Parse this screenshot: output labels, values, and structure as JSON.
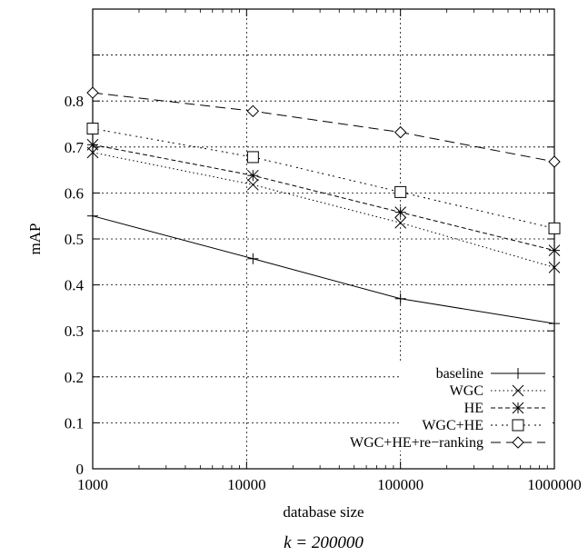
{
  "chart_data": {
    "type": "line",
    "xscale": "log",
    "x": [
      1000,
      10000,
      100000,
      1000000
    ],
    "xlim": [
      1000,
      1000000
    ],
    "ylim": [
      0,
      1
    ],
    "xticks": [
      "1000",
      "10000",
      "100000",
      "1000000"
    ],
    "yticks": [
      "0",
      "0.1",
      "0.2",
      "0.3",
      "0.4",
      "0.5",
      "0.6",
      "0.7",
      "0.8"
    ],
    "xlabel": "database size",
    "ylabel": "mAP",
    "caption": "k = 200000",
    "grid": true,
    "legend_position": "bottom-right",
    "series": [
      {
        "name": "baseline",
        "marker": "plus",
        "dash": "solid",
        "x": [
          1000,
          11000,
          100000,
          1000000
        ],
        "values": [
          0.55,
          0.457,
          0.37,
          0.316
        ]
      },
      {
        "name": "WGC",
        "marker": "cross",
        "dash": "dotted",
        "x": [
          1000,
          11000,
          100000,
          1000000
        ],
        "values": [
          0.688,
          0.618,
          0.535,
          0.438
        ]
      },
      {
        "name": "HE",
        "marker": "asterisk",
        "dash": "dashed",
        "x": [
          1000,
          11000,
          100000,
          1000000
        ],
        "values": [
          0.705,
          0.638,
          0.558,
          0.475
        ]
      },
      {
        "name": "WGC+HE",
        "marker": "square",
        "dash": "dashdot",
        "x": [
          1000,
          11000,
          100000,
          1000000
        ],
        "values": [
          0.74,
          0.678,
          0.602,
          0.523
        ]
      },
      {
        "name": "WGC+HE+re−ranking",
        "marker": "diamond",
        "dash": "longdash",
        "x": [
          1000,
          11000,
          100000,
          1000000
        ],
        "values": [
          0.818,
          0.778,
          0.732,
          0.668
        ]
      }
    ]
  }
}
